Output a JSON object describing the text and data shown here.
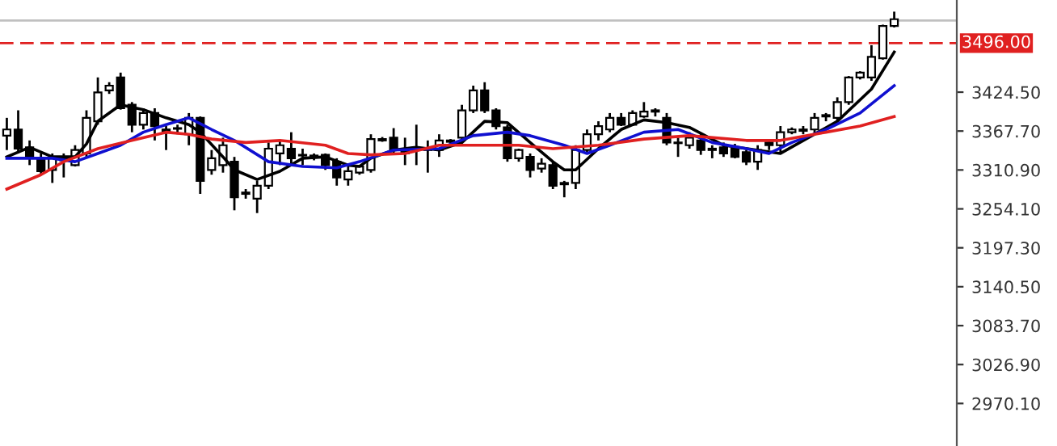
{
  "chart_data": {
    "type": "candlestick",
    "categories": [
      null,
      null,
      null,
      null,
      null,
      null,
      null,
      null,
      null,
      null,
      null,
      null,
      null,
      null,
      null,
      null,
      null,
      null,
      null,
      null,
      null,
      null,
      null,
      null,
      null,
      null,
      null,
      null,
      null,
      null,
      null,
      null,
      null,
      null,
      null,
      null,
      null,
      null,
      null,
      null,
      null,
      null,
      null,
      null,
      null,
      null,
      null,
      null,
      null,
      null,
      null,
      null,
      null,
      null,
      null,
      null,
      null,
      null,
      null,
      null,
      null,
      null,
      null,
      null,
      null,
      null,
      null,
      null,
      null,
      null,
      null,
      null,
      null,
      null,
      null,
      null,
      null,
      null,
      null
    ],
    "ohlc": [
      [
        3361,
        3387,
        3340,
        3370
      ],
      [
        3370,
        3398,
        3335,
        3342
      ],
      [
        3344,
        3354,
        3318,
        3330
      ],
      [
        3328,
        3335,
        3304,
        3309
      ],
      [
        3311,
        3335,
        3292,
        3328
      ],
      [
        3325,
        3335,
        3300,
        3328
      ],
      [
        3318,
        3347,
        3316,
        3340
      ],
      [
        3335,
        3398,
        3328,
        3387
      ],
      [
        3382,
        3446,
        3377,
        3424
      ],
      [
        3427,
        3439,
        3422,
        3434
      ],
      [
        3446,
        3453,
        3399,
        3401
      ],
      [
        3406,
        3410,
        3366,
        3377
      ],
      [
        3377,
        3401,
        3370,
        3394
      ],
      [
        3394,
        3401,
        3354,
        3375
      ],
      [
        3370,
        3375,
        3340,
        3368
      ],
      [
        3372,
        3377,
        3363,
        3371
      ],
      [
        3363,
        3394,
        3347,
        3387
      ],
      [
        3387,
        3389,
        3276,
        3295
      ],
      [
        3311,
        3340,
        3304,
        3328
      ],
      [
        3318,
        3358,
        3307,
        3347
      ],
      [
        3323,
        3330,
        3252,
        3271
      ],
      [
        3276,
        3283,
        3269,
        3278
      ],
      [
        3269,
        3295,
        3248,
        3288
      ],
      [
        3288,
        3351,
        3283,
        3342
      ],
      [
        3335,
        3354,
        3318,
        3347
      ],
      [
        3342,
        3366,
        3318,
        3328
      ],
      [
        3333,
        3342,
        3318,
        3332
      ],
      [
        3330,
        3335,
        3325,
        3332
      ],
      [
        3333,
        3335,
        3311,
        3318
      ],
      [
        3323,
        3328,
        3288,
        3300
      ],
      [
        3297,
        3316,
        3288,
        3309
      ],
      [
        3307,
        3318,
        3304,
        3316
      ],
      [
        3311,
        3363,
        3307,
        3356
      ],
      [
        3354,
        3359,
        3352,
        3356
      ],
      [
        3358,
        3372,
        3335,
        3340
      ],
      [
        3342,
        3358,
        3318,
        3335
      ],
      [
        3342,
        3377,
        3318,
        3341
      ],
      [
        3342,
        3354,
        3307,
        3340
      ],
      [
        3340,
        3363,
        3330,
        3354
      ],
      [
        3352,
        3356,
        3347,
        3354
      ],
      [
        3358,
        3406,
        3354,
        3398
      ],
      [
        3398,
        3434,
        3394,
        3427
      ],
      [
        3427,
        3439,
        3394,
        3398
      ],
      [
        3398,
        3401,
        3370,
        3375
      ],
      [
        3373,
        3377,
        3323,
        3328
      ],
      [
        3328,
        3342,
        3323,
        3340
      ],
      [
        3330,
        3335,
        3300,
        3311
      ],
      [
        3313,
        3328,
        3307,
        3320
      ],
      [
        3318,
        3323,
        3283,
        3288
      ],
      [
        3292,
        3295,
        3271,
        3290
      ],
      [
        3292,
        3347,
        3283,
        3340
      ],
      [
        3340,
        3370,
        3335,
        3363
      ],
      [
        3363,
        3382,
        3354,
        3375
      ],
      [
        3370,
        3394,
        3366,
        3387
      ],
      [
        3387,
        3394,
        3375,
        3377
      ],
      [
        3377,
        3398,
        3375,
        3394
      ],
      [
        3389,
        3410,
        3387,
        3396
      ],
      [
        3396,
        3401,
        3389,
        3398
      ],
      [
        3387,
        3394,
        3347,
        3351
      ],
      [
        3351,
        3358,
        3330,
        3350
      ],
      [
        3347,
        3366,
        3342,
        3358
      ],
      [
        3354,
        3363,
        3333,
        3340
      ],
      [
        3342,
        3347,
        3328,
        3340
      ],
      [
        3344,
        3351,
        3330,
        3335
      ],
      [
        3342,
        3349,
        3328,
        3330
      ],
      [
        3337,
        3340,
        3318,
        3323
      ],
      [
        3323,
        3347,
        3311,
        3340
      ],
      [
        3351,
        3356,
        3340,
        3347
      ],
      [
        3347,
        3375,
        3335,
        3366
      ],
      [
        3366,
        3373,
        3363,
        3370
      ],
      [
        3368,
        3375,
        3363,
        3370
      ],
      [
        3370,
        3394,
        3363,
        3387
      ],
      [
        3389,
        3394,
        3382,
        3391
      ],
      [
        3387,
        3417,
        3382,
        3410
      ],
      [
        3410,
        3448,
        3406,
        3446
      ],
      [
        3446,
        3455,
        3443,
        3453
      ],
      [
        3446,
        3493,
        3441,
        3476
      ],
      [
        3474,
        3523,
        3472,
        3521
      ],
      [
        3521,
        3542,
        3519,
        3531
      ]
    ],
    "series": [
      {
        "type": "line",
        "color": "#000000",
        "values": [
          3330,
          null,
          3344,
          null,
          3330,
          null,
          3330,
          3349,
          3382,
          null,
          3406,
          null,
          3399,
          null,
          3387,
          null,
          3377,
          3366,
          null,
          3330,
          3311,
          null,
          3297,
          null,
          3309,
          null,
          3328,
          null,
          3330,
          null,
          3318,
          3316,
          3328,
          null,
          3340,
          null,
          3344,
          null,
          3340,
          null,
          3351,
          null,
          3382,
          null,
          3380,
          null,
          3351,
          null,
          3323,
          3311,
          3311,
          null,
          3342,
          null,
          3370,
          null,
          3384,
          null,
          3380,
          null,
          3373,
          null,
          null,
          3347,
          null,
          null,
          null,
          null,
          3335,
          null,
          null,
          null,
          null,
          3382,
          null,
          null,
          3429,
          null,
          3483
        ]
      },
      {
        "type": "line",
        "color": "#1010d0",
        "values": [
          3328,
          null,
          null,
          null,
          3328,
          null,
          3323,
          null,
          3335,
          null,
          3347,
          null,
          3366,
          null,
          3377,
          null,
          3387,
          null,
          3370,
          null,
          3354,
          null,
          null,
          3323,
          null,
          null,
          3316,
          null,
          null,
          3314,
          null,
          3323,
          null,
          null,
          3340,
          null,
          null,
          null,
          3342,
          null,
          null,
          3361,
          null,
          null,
          3366,
          null,
          3361,
          null,
          null,
          3347,
          null,
          3335,
          null,
          3347,
          null,
          null,
          3366,
          null,
          null,
          3370,
          null,
          null,
          3351,
          null,
          null,
          3342,
          null,
          3335,
          null,
          3351,
          null,
          null,
          3370,
          null,
          null,
          3394,
          null,
          null,
          3434
        ]
      },
      {
        "type": "line",
        "color": "#e02020",
        "values": [
          3283,
          null,
          null,
          3304,
          null,
          3323,
          null,
          null,
          3342,
          null,
          null,
          3354,
          null,
          null,
          3366,
          null,
          3363,
          null,
          3356,
          null,
          null,
          3351,
          null,
          null,
          3354,
          null,
          null,
          null,
          3347,
          null,
          3335,
          null,
          3333,
          null,
          null,
          3335,
          null,
          null,
          3347,
          null,
          null,
          3347,
          null,
          null,
          null,
          3347,
          null,
          null,
          3342,
          null,
          null,
          null,
          3347,
          null,
          null,
          null,
          3356,
          null,
          null,
          null,
          3361,
          null,
          null,
          null,
          null,
          3354,
          null,
          null,
          3354,
          null,
          null,
          null,
          3366,
          null,
          null,
          3375,
          null,
          null,
          3389
        ]
      }
    ],
    "ylim": [
      2908,
      3559
    ],
    "yticks": [
      {
        "value": 2970.1,
        "label": "2970.10"
      },
      {
        "value": 3026.9,
        "label": "3026.90"
      },
      {
        "value": 3083.7,
        "label": "3083.70"
      },
      {
        "value": 3140.5,
        "label": "3140.50"
      },
      {
        "value": 3197.3,
        "label": "3197.30"
      },
      {
        "value": 3254.1,
        "label": "3254.10"
      },
      {
        "value": 3310.9,
        "label": "3310.90"
      },
      {
        "value": 3367.7,
        "label": "3367.70"
      },
      {
        "value": 3424.5,
        "label": "3424.50"
      }
    ],
    "ref_lines": [
      {
        "axis": "y",
        "value": 3496.0,
        "label": "3496.00",
        "color": "#e02020",
        "line_style": "dashed"
      },
      {
        "axis": "y",
        "value": 3529,
        "color": "#c0c0c0",
        "line_style": "solid"
      }
    ],
    "tick_labels": "y",
    "grid": false,
    "legend": false
  }
}
